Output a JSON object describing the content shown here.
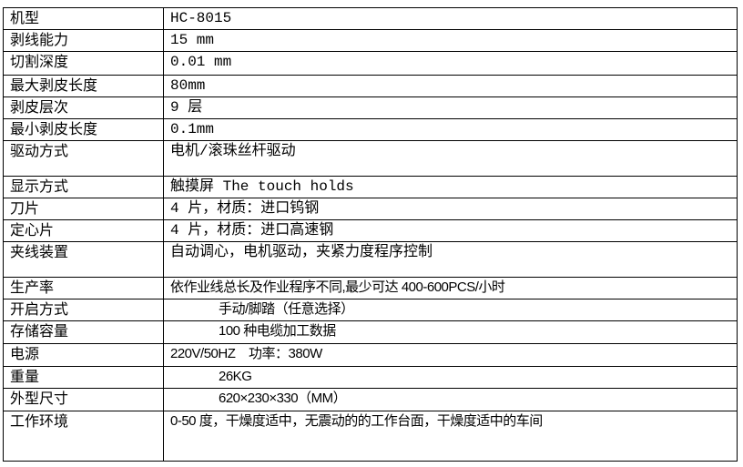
{
  "spec_table": {
    "rows": [
      {
        "label": "机型",
        "value": "HC-8015"
      },
      {
        "label": "剥线能力",
        "value": "15 mm"
      },
      {
        "label": "切割深度",
        "value": "0.01 mm"
      },
      {
        "label": "最大剥皮长度",
        "value": "80mm"
      },
      {
        "label": "剥皮层次",
        "value": "9 层"
      },
      {
        "label": "最小剥皮长度",
        "value": "0.1mm"
      },
      {
        "label": "驱动方式",
        "value": "电机/滚珠丝杆驱动"
      },
      {
        "label": "显示方式",
        "value": "触摸屏 The touch holds"
      },
      {
        "label": "刀片",
        "value": "4 片，材质：进口钨钢"
      },
      {
        "label": "定心片",
        "value": "4 片，材质：进口高速钢"
      },
      {
        "label": "夹线装置",
        "value": "自动调心，电机驱动，夹紧力度程序控制"
      },
      {
        "label": "生产率",
        "value": "依作业线总长及作业程序不同,最少可达 400-600PCS/小时"
      },
      {
        "label": "开启方式",
        "value": "手动/脚踏（任意选择）"
      },
      {
        "label": "存储容量",
        "value": "100 种电缆加工数据"
      },
      {
        "label": "电源",
        "value": "220V/50HZ    功率：380W"
      },
      {
        "label": "重量",
        "value": "26KG"
      },
      {
        "label": "外型尺寸",
        "value": "620×230×330（MM）"
      },
      {
        "label": "工作环境",
        "value": "0-50 度，干燥度适中，无震动的的工作台面，干燥度适中的车间"
      }
    ]
  }
}
